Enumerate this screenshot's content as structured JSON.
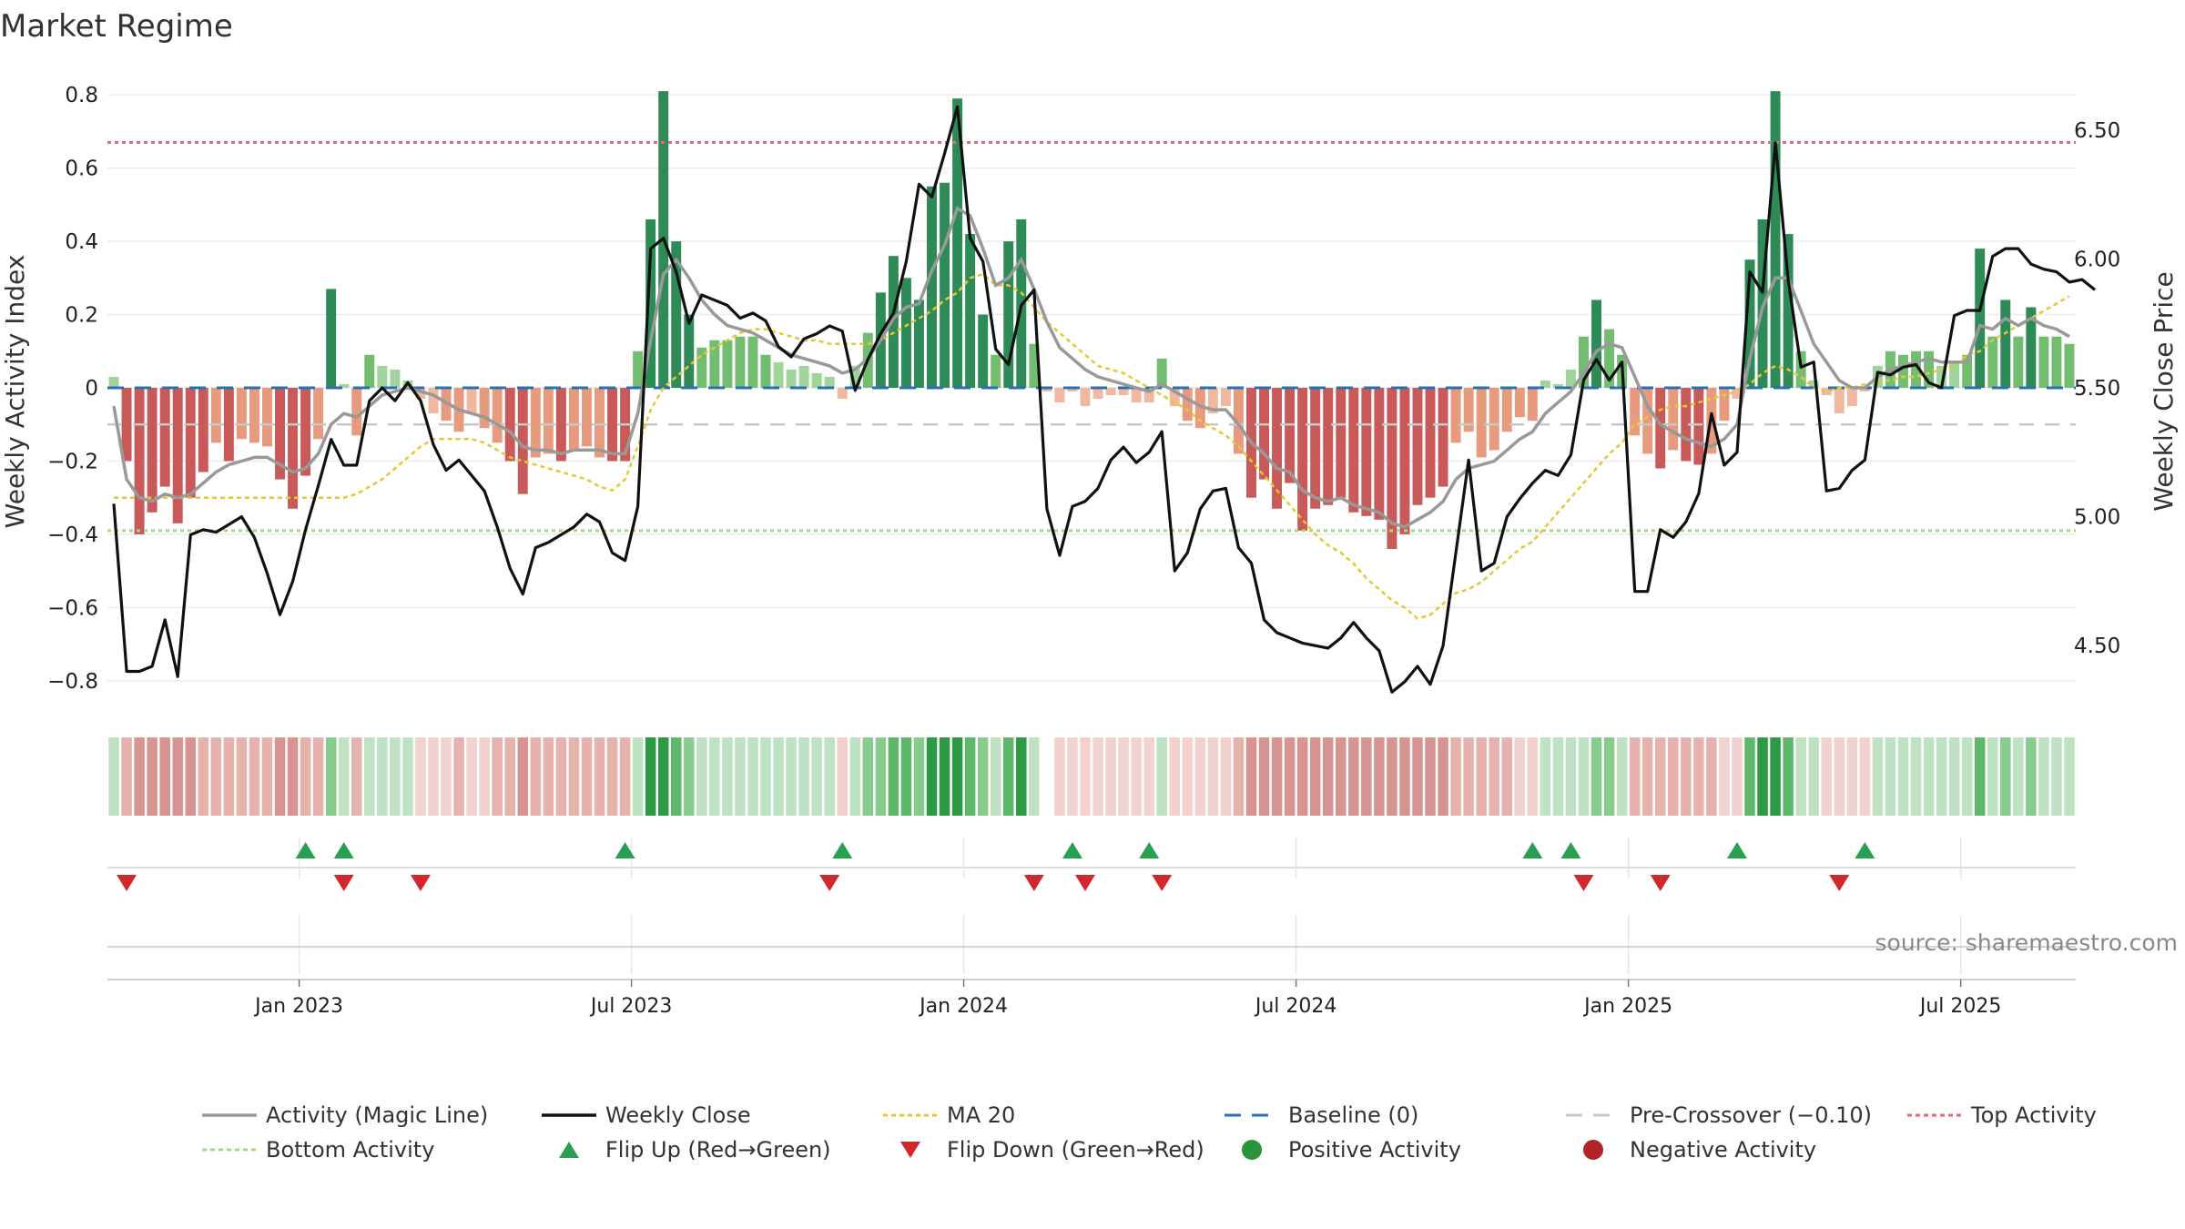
{
  "chart_data": {
    "type": "bar",
    "title": "Market Regime",
    "ylabel_left": "Weekly Activity Index",
    "ylabel_right": "Weekly Close Price",
    "ylim_left": [
      -0.88,
      0.88
    ],
    "ylim_right": [
      4.25,
      6.75
    ],
    "yticks_left": [
      "0.8",
      "0.6",
      "0.4",
      "0.2",
      "0",
      "−0.2",
      "−0.4",
      "−0.6",
      "−0.8"
    ],
    "yticks_left_values": [
      0.8,
      0.6,
      0.4,
      0.2,
      0,
      -0.2,
      -0.4,
      -0.6,
      -0.8
    ],
    "yticks_right": [
      "6.50",
      "6.00",
      "5.50",
      "5.00",
      "4.50"
    ],
    "yticks_right_values": [
      6.5,
      6.0,
      5.5,
      5.0,
      4.5
    ],
    "xticks": [
      "Jan 2023",
      "Jul 2023",
      "Jan 2024",
      "Jul 2024",
      "Jan 2025",
      "Jul 2025"
    ],
    "xtick_week_index": [
      15,
      41,
      67,
      93,
      119,
      145
    ],
    "reference_lines": {
      "baseline": 0,
      "pre_crossover": -0.1,
      "top_activity": 0.67,
      "bottom_activity": -0.39
    },
    "activity": [
      0.03,
      -0.2,
      -0.4,
      -0.34,
      -0.27,
      -0.37,
      -0.3,
      -0.23,
      -0.15,
      -0.2,
      -0.14,
      -0.15,
      -0.16,
      -0.25,
      -0.33,
      -0.24,
      -0.14,
      0.27,
      0.01,
      -0.13,
      0.09,
      0.06,
      0.05,
      0.02,
      -0.03,
      -0.07,
      -0.09,
      -0.12,
      -0.07,
      -0.11,
      -0.15,
      -0.2,
      -0.29,
      -0.19,
      -0.18,
      -0.2,
      -0.17,
      -0.16,
      -0.19,
      -0.2,
      -0.2,
      0.1,
      0.46,
      0.81,
      0.4,
      0.2,
      0.11,
      0.13,
      0.13,
      0.14,
      0.14,
      0.09,
      0.07,
      0.05,
      0.06,
      0.04,
      0.03,
      -0.03,
      0.06,
      0.15,
      0.26,
      0.36,
      0.3,
      0.24,
      0.55,
      0.56,
      0.79,
      0.42,
      0.2,
      0.09,
      0.4,
      0.46,
      0.12,
      -0.01,
      -0.04,
      -0.01,
      -0.05,
      -0.03,
      -0.02,
      -0.02,
      -0.04,
      -0.04,
      0.08,
      -0.05,
      -0.09,
      -0.11,
      -0.07,
      -0.05,
      -0.18,
      -0.3,
      -0.25,
      -0.33,
      -0.26,
      -0.39,
      -0.33,
      -0.32,
      -0.3,
      -0.34,
      -0.35,
      -0.36,
      -0.44,
      -0.4,
      -0.32,
      -0.3,
      -0.27,
      -0.15,
      -0.12,
      -0.19,
      -0.17,
      -0.12,
      -0.08,
      -0.09,
      0.02,
      0.01,
      0.05,
      0.14,
      0.24,
      0.16,
      0.09,
      -0.13,
      -0.18,
      -0.22,
      -0.17,
      -0.2,
      -0.21,
      -0.18,
      -0.09,
      -0.03,
      0.35,
      0.46,
      0.81,
      0.42,
      0.1,
      0.02,
      -0.02,
      -0.07,
      -0.05,
      -0.01,
      0.06,
      0.1,
      0.09,
      0.1,
      0.1,
      0.06,
      0.07,
      0.09,
      0.38,
      0.14,
      0.24,
      0.14,
      0.22,
      0.14,
      0.14,
      0.12
    ],
    "weekly_close": [
      5.05,
      4.4,
      4.4,
      4.42,
      4.6,
      4.38,
      4.93,
      4.95,
      4.94,
      4.97,
      5.0,
      4.92,
      4.78,
      4.62,
      4.75,
      4.95,
      5.12,
      5.3,
      5.2,
      5.2,
      5.45,
      5.5,
      5.45,
      5.52,
      5.45,
      5.28,
      5.18,
      5.22,
      5.16,
      5.1,
      4.96,
      4.8,
      4.7,
      4.88,
      4.9,
      4.93,
      4.96,
      5.01,
      4.98,
      4.86,
      4.83,
      5.04,
      6.04,
      6.08,
      5.95,
      5.75,
      5.86,
      5.84,
      5.82,
      5.77,
      5.79,
      5.76,
      5.66,
      5.62,
      5.69,
      5.71,
      5.74,
      5.72,
      5.49,
      5.61,
      5.71,
      5.79,
      5.99,
      6.29,
      6.24,
      6.41,
      6.59,
      6.08,
      5.99,
      5.65,
      5.59,
      5.82,
      5.88,
      5.03,
      4.85,
      5.04,
      5.06,
      5.11,
      5.22,
      5.27,
      5.21,
      5.25,
      5.33,
      4.79,
      4.86,
      5.03,
      5.1,
      5.11,
      4.88,
      4.82,
      4.6,
      4.55,
      4.53,
      4.51,
      4.5,
      4.49,
      4.53,
      4.59,
      4.53,
      4.48,
      4.32,
      4.36,
      4.42,
      4.35,
      4.5,
      4.86,
      5.22,
      4.79,
      4.82,
      5.0,
      5.07,
      5.13,
      5.18,
      5.16,
      5.24,
      5.53,
      5.61,
      5.53,
      5.6,
      4.71,
      4.71,
      4.95,
      4.92,
      4.98,
      5.09,
      5.4,
      5.2,
      5.25,
      5.95,
      5.87,
      6.45,
      5.92,
      5.58,
      5.6,
      5.1,
      5.11,
      5.18,
      5.22,
      5.56,
      5.55,
      5.58,
      5.59,
      5.52,
      5.5,
      5.78,
      5.8,
      5.8,
      6.01,
      6.04,
      6.04,
      5.98,
      5.96,
      5.95,
      5.91,
      5.92,
      5.88
    ],
    "magic_line": [
      -0.05,
      -0.25,
      -0.3,
      -0.31,
      -0.29,
      -0.3,
      -0.29,
      -0.26,
      -0.23,
      -0.21,
      -0.2,
      -0.19,
      -0.19,
      -0.21,
      -0.23,
      -0.22,
      -0.18,
      -0.1,
      -0.07,
      -0.08,
      -0.05,
      -0.02,
      -0.01,
      0,
      -0.01,
      -0.02,
      -0.04,
      -0.06,
      -0.07,
      -0.08,
      -0.1,
      -0.12,
      -0.16,
      -0.17,
      -0.17,
      -0.18,
      -0.17,
      -0.17,
      -0.17,
      -0.18,
      -0.18,
      -0.07,
      0.13,
      0.31,
      0.35,
      0.3,
      0.24,
      0.2,
      0.17,
      0.16,
      0.15,
      0.13,
      0.11,
      0.09,
      0.08,
      0.07,
      0.06,
      0.04,
      0.05,
      0.08,
      0.13,
      0.19,
      0.22,
      0.23,
      0.32,
      0.39,
      0.49,
      0.47,
      0.38,
      0.28,
      0.3,
      0.35,
      0.27,
      0.18,
      0.11,
      0.08,
      0.05,
      0.03,
      0.02,
      0.01,
      0,
      -0.01,
      0.01,
      -0.01,
      -0.03,
      -0.05,
      -0.06,
      -0.06,
      -0.1,
      -0.15,
      -0.18,
      -0.22,
      -0.23,
      -0.28,
      -0.3,
      -0.31,
      -0.3,
      -0.32,
      -0.33,
      -0.34,
      -0.37,
      -0.38,
      -0.36,
      -0.34,
      -0.31,
      -0.25,
      -0.22,
      -0.21,
      -0.2,
      -0.17,
      -0.14,
      -0.12,
      -0.07,
      -0.04,
      -0.01,
      0.04,
      0.1,
      0.12,
      0.11,
      0.03,
      -0.05,
      -0.1,
      -0.12,
      -0.14,
      -0.15,
      -0.16,
      -0.14,
      -0.1,
      0.08,
      0.22,
      0.3,
      0.3,
      0.21,
      0.12,
      0.07,
      0.02,
      0,
      0,
      0.03,
      0.05,
      0.06,
      0.07,
      0.08,
      0.07,
      0.07,
      0.07,
      0.17,
      0.16,
      0.19,
      0.17,
      0.19,
      0.17,
      0.16,
      0.14
    ],
    "ma20": [
      -0.3,
      -0.3,
      -0.3,
      -0.3,
      -0.3,
      -0.3,
      -0.3,
      -0.3,
      -0.3,
      -0.3,
      -0.3,
      -0.3,
      -0.3,
      -0.3,
      -0.3,
      -0.3,
      -0.3,
      -0.3,
      -0.3,
      -0.29,
      -0.27,
      -0.25,
      -0.22,
      -0.19,
      -0.16,
      -0.14,
      -0.14,
      -0.14,
      -0.14,
      -0.15,
      -0.17,
      -0.19,
      -0.2,
      -0.21,
      -0.22,
      -0.23,
      -0.24,
      -0.25,
      -0.27,
      -0.28,
      -0.25,
      -0.16,
      -0.06,
      0,
      0.03,
      0.06,
      0.09,
      0.11,
      0.13,
      0.15,
      0.16,
      0.16,
      0.15,
      0.14,
      0.13,
      0.13,
      0.12,
      0.12,
      0.12,
      0.12,
      0.13,
      0.15,
      0.17,
      0.19,
      0.21,
      0.24,
      0.26,
      0.3,
      0.31,
      0.28,
      0.28,
      0.26,
      0.22,
      0.18,
      0.15,
      0.12,
      0.09,
      0.06,
      0.05,
      0.04,
      0.02,
      0,
      -0.02,
      -0.04,
      -0.06,
      -0.09,
      -0.11,
      -0.13,
      -0.16,
      -0.2,
      -0.24,
      -0.28,
      -0.32,
      -0.36,
      -0.4,
      -0.43,
      -0.45,
      -0.48,
      -0.52,
      -0.55,
      -0.58,
      -0.6,
      -0.63,
      -0.62,
      -0.59,
      -0.56,
      -0.55,
      -0.53,
      -0.5,
      -0.47,
      -0.44,
      -0.42,
      -0.38,
      -0.34,
      -0.3,
      -0.26,
      -0.22,
      -0.18,
      -0.15,
      -0.1,
      -0.08,
      -0.06,
      -0.05,
      -0.05,
      -0.04,
      -0.03,
      -0.02,
      -0.01,
      0.01,
      0.04,
      0.06,
      0.05,
      0.03,
      0,
      -0.01,
      0,
      0,
      0.01,
      0.02,
      0.02,
      0.03,
      0.03,
      0.04,
      0.05,
      0.06,
      0.09,
      0.1,
      0.13,
      0.15,
      0.17,
      0.19,
      0.21,
      0.23,
      0.25
    ],
    "flip_up_weeks": [
      15,
      18,
      40,
      57,
      75,
      81,
      111,
      114,
      127,
      137
    ],
    "flip_down_weeks": [
      1,
      18,
      24,
      56,
      72,
      76,
      82,
      115,
      121,
      135
    ],
    "annotations": {
      "source": "source: sharemaestro.com"
    },
    "legend": [
      {
        "label": "Activity (Magic Line)",
        "style": "line",
        "color": "#999999"
      },
      {
        "label": "Weekly Close",
        "style": "line",
        "color": "#111111"
      },
      {
        "label": "MA 20",
        "style": "dotted",
        "color": "#e6c830"
      },
      {
        "label": "Baseline (0)",
        "style": "dashed",
        "color": "#2a6fb0"
      },
      {
        "label": "Pre-Crossover (−0.10)",
        "style": "dashed",
        "color": "#c8c8c8"
      },
      {
        "label": "Top Activity",
        "style": "dotted",
        "color": "#e06a7a"
      },
      {
        "label": "Bottom Activity",
        "style": "dotted",
        "color": "#a8d880"
      },
      {
        "label": "Flip Up (Red→Green)",
        "style": "triangle-up",
        "color": "#27a052"
      },
      {
        "label": "Flip Down (Green→Red)",
        "style": "triangle-down",
        "color": "#d0282c"
      },
      {
        "label": "Positive Activity",
        "style": "dot",
        "color": "#27943a"
      },
      {
        "label": "Negative Activity",
        "style": "dot",
        "color": "#b22228"
      }
    ]
  }
}
